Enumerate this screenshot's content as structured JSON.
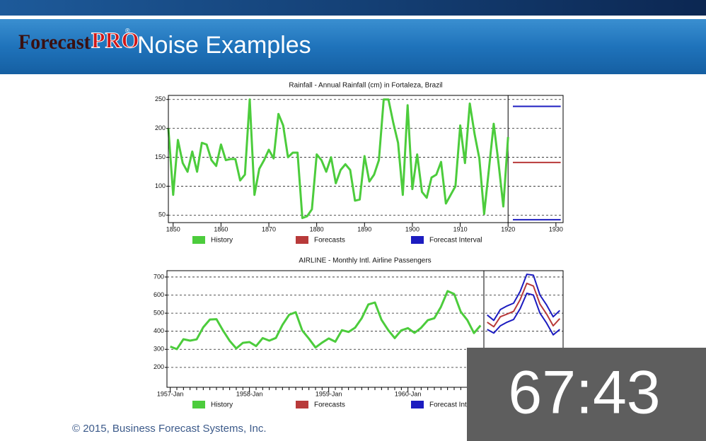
{
  "header": {
    "logo_a": "Forecast",
    "logo_b": "PRO",
    "logo_mark": "®",
    "title": "Noise Examples"
  },
  "footer": {
    "copyright": "© 2015, Business Forecast Systems, Inc."
  },
  "timer": {
    "text": "67:43"
  },
  "chart_data": [
    {
      "type": "line",
      "title": "Rainfall - Annual Rainfall (cm) in Fortaleza, Brazil",
      "xlim": [
        1849,
        1931.5
      ],
      "xticks": [
        1850,
        1860,
        1870,
        1880,
        1890,
        1900,
        1910,
        1920,
        1930
      ],
      "ylim": [
        37,
        257
      ],
      "yticks": [
        50,
        100,
        150,
        200,
        250
      ],
      "grid": true,
      "series": [
        {
          "name": "History",
          "color": "#4ccc3c",
          "x": [
            1849,
            1850,
            1851,
            1852,
            1853,
            1854,
            1855,
            1856,
            1857,
            1858,
            1859,
            1860,
            1861,
            1862,
            1863,
            1864,
            1865,
            1866,
            1867,
            1868,
            1869,
            1870,
            1871,
            1872,
            1873,
            1874,
            1875,
            1876,
            1877,
            1878,
            1879,
            1880,
            1881,
            1882,
            1883,
            1884,
            1885,
            1886,
            1887,
            1888,
            1889,
            1890,
            1891,
            1892,
            1893,
            1894,
            1895,
            1896,
            1897,
            1898,
            1899,
            1900,
            1901,
            1902,
            1903,
            1904,
            1905,
            1906,
            1907,
            1908,
            1909,
            1910,
            1911,
            1912,
            1913,
            1914,
            1915,
            1916,
            1917,
            1918,
            1919,
            1920
          ],
          "values": [
            200,
            85,
            180,
            140,
            125,
            160,
            125,
            175,
            172,
            145,
            135,
            172,
            145,
            147,
            147,
            110,
            120,
            250,
            85,
            130,
            145,
            163,
            148,
            225,
            205,
            150,
            158,
            158,
            45,
            48,
            60,
            155,
            145,
            125,
            150,
            105,
            128,
            138,
            128,
            75,
            77,
            152,
            108,
            120,
            145,
            250,
            250,
            210,
            175,
            85,
            240,
            95,
            155,
            90,
            80,
            115,
            120,
            142,
            70,
            85,
            100,
            205,
            140,
            243,
            190,
            148,
            52,
            130,
            208,
            140,
            65,
            185
          ]
        },
        {
          "name": "Forecasts",
          "color": "#b83a3a",
          "x": [
            1921,
            1931
          ],
          "values": [
            141,
            141
          ]
        },
        {
          "name": "Forecast Interval",
          "color": "#1c1cc0",
          "x": [
            1921,
            1931
          ],
          "values": [
            238,
            238
          ],
          "lower": [
            42,
            42
          ]
        }
      ]
    },
    {
      "type": "line",
      "title": "AIRLINE - Monthly Intl. Airline Passengers",
      "categories": [
        "1957-Jan",
        null,
        null,
        null,
        null,
        null,
        null,
        null,
        null,
        null,
        null,
        null,
        "1958-Jan",
        null,
        null,
        null,
        null,
        null,
        null,
        null,
        null,
        null,
        null,
        null,
        "1959-Jan",
        null,
        null,
        null,
        null,
        null,
        null,
        null,
        null,
        null,
        null,
        null,
        "1960-Jan",
        null,
        null,
        null,
        null,
        null,
        null,
        null,
        null,
        null,
        null,
        null,
        null,
        null,
        null,
        null,
        null,
        null,
        null,
        null,
        null,
        null,
        null,
        null
      ],
      "ylim": [
        90,
        735
      ],
      "yticks": [
        200,
        300,
        400,
        500,
        600,
        700
      ],
      "grid": true,
      "series": [
        {
          "name": "History",
          "color": "#4ccc3c",
          "values": [
            315,
            301,
            356,
            348,
            355,
            422,
            465,
            467,
            404,
            347,
            305,
            336,
            340,
            318,
            362,
            348,
            363,
            435,
            491,
            505,
            404,
            359,
            310,
            337,
            360,
            342,
            406,
            396,
            420,
            472,
            548,
            559,
            463,
            407,
            362,
            405,
            417,
            391,
            419,
            461,
            472,
            535,
            622,
            606,
            508,
            461,
            390,
            432,
            null,
            null,
            null,
            null,
            null,
            null,
            null,
            null,
            null,
            null,
            null,
            null
          ]
        },
        {
          "name": "Forecasts",
          "color": "#b83a3a",
          "values": [
            null,
            null,
            null,
            null,
            null,
            null,
            null,
            null,
            null,
            null,
            null,
            null,
            null,
            null,
            null,
            null,
            null,
            null,
            null,
            null,
            null,
            null,
            null,
            null,
            null,
            null,
            null,
            null,
            null,
            null,
            null,
            null,
            null,
            null,
            null,
            null,
            null,
            null,
            null,
            null,
            null,
            null,
            null,
            null,
            null,
            null,
            null,
            null,
            450,
            425,
            480,
            495,
            510,
            575,
            665,
            650,
            550,
            495,
            430,
            470
          ]
        },
        {
          "name": "Forecast Interval",
          "color": "#1c1cc0",
          "values": [
            null,
            null,
            null,
            null,
            null,
            null,
            null,
            null,
            null,
            null,
            null,
            null,
            null,
            null,
            null,
            null,
            null,
            null,
            null,
            null,
            null,
            null,
            null,
            null,
            null,
            null,
            null,
            null,
            null,
            null,
            null,
            null,
            null,
            null,
            null,
            null,
            null,
            null,
            null,
            null,
            null,
            null,
            null,
            null,
            null,
            null,
            null,
            null,
            490,
            460,
            520,
            540,
            555,
            620,
            715,
            710,
            600,
            545,
            480,
            515
          ],
          "lower": [
            null,
            null,
            null,
            null,
            null,
            null,
            null,
            null,
            null,
            null,
            null,
            null,
            null,
            null,
            null,
            null,
            null,
            null,
            null,
            null,
            null,
            null,
            null,
            null,
            null,
            null,
            null,
            null,
            null,
            null,
            null,
            null,
            null,
            null,
            null,
            null,
            null,
            null,
            null,
            null,
            null,
            null,
            null,
            null,
            null,
            null,
            null,
            null,
            410,
            390,
            430,
            450,
            465,
            525,
            610,
            600,
            500,
            445,
            380,
            410
          ]
        }
      ]
    }
  ]
}
